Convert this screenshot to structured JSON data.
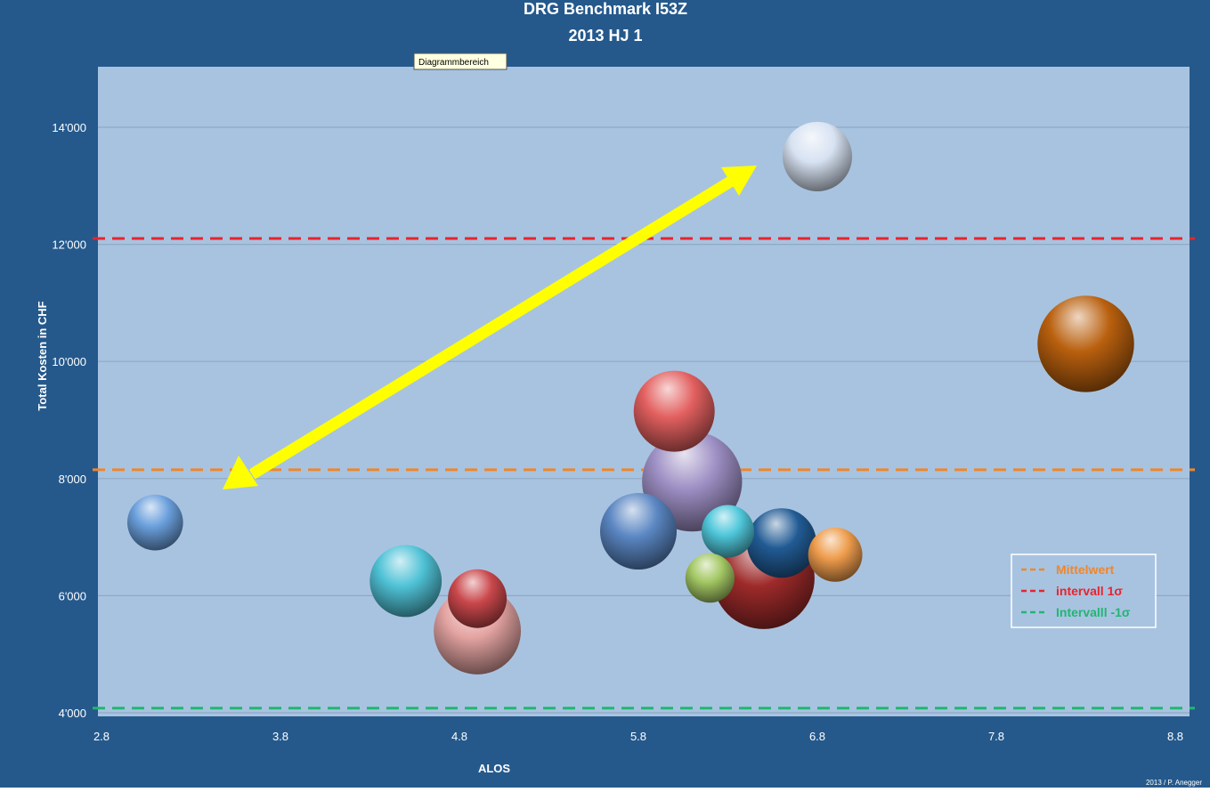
{
  "chart_data": {
    "type": "bubble",
    "title": "DRG Benchmark I53Z",
    "subtitle": "2013 HJ 1",
    "xlabel": "ALOS",
    "ylabel": "Total Kosten in CHF",
    "xlim": [
      2.8,
      8.9
    ],
    "ylim": [
      4000,
      15000
    ],
    "x_ticks": [
      "2.8",
      "3.8",
      "4.8",
      "5.8",
      "6.8",
      "7.8",
      "8.8"
    ],
    "x_tick_values": [
      2.8,
      3.8,
      4.8,
      5.8,
      6.8,
      7.8,
      8.8
    ],
    "y_ticks": [
      "4'000",
      "6'000",
      "8'000",
      "10'000",
      "12'000",
      "14'000"
    ],
    "y_tick_values": [
      4000,
      6000,
      8000,
      10000,
      12000,
      14000
    ],
    "grid": "horizontal",
    "tooltip": "Diagrammbereich",
    "credit": "2013 / P. Anegger",
    "reference_lines": [
      {
        "name": "Mittelwert",
        "y": 8150,
        "color": "#f0862a"
      },
      {
        "name": "intervall 1σ",
        "y": 12100,
        "color": "#e8242d"
      },
      {
        "name": "Intervalll -1σ",
        "y": 4080,
        "color": "#22b573"
      }
    ],
    "legend": {
      "position": "lower-right",
      "entries": [
        {
          "label": "Mittelwert",
          "color": "#f0862a"
        },
        {
          "label": "intervall 1σ",
          "color": "#e8242d"
        },
        {
          "label": "Intervalll -1σ",
          "color": "#22b573"
        }
      ]
    },
    "series": [
      {
        "x": 3.1,
        "y": 7250,
        "size": 0.9,
        "color": "#6a9fdc"
      },
      {
        "x": 4.9,
        "y": 5400,
        "size": 2.2,
        "color": "#e3a3a1"
      },
      {
        "x": 4.5,
        "y": 6250,
        "size": 1.5,
        "color": "#4fc2d6"
      },
      {
        "x": 4.9,
        "y": 5950,
        "size": 1.0,
        "color": "#c9474b"
      },
      {
        "x": 5.8,
        "y": 7100,
        "size": 1.7,
        "color": "#5a86c2"
      },
      {
        "x": 6.1,
        "y": 7950,
        "size": 2.9,
        "color": "#9d8fc4"
      },
      {
        "x": 6.0,
        "y": 9150,
        "size": 1.9,
        "color": "#e2605f"
      },
      {
        "x": 6.5,
        "y": 6300,
        "size": 3.0,
        "color": "#9e2a2a"
      },
      {
        "x": 6.2,
        "y": 6300,
        "size": 0.7,
        "color": "#a4c864"
      },
      {
        "x": 6.3,
        "y": 7100,
        "size": 0.8,
        "color": "#4fc7da"
      },
      {
        "x": 6.6,
        "y": 6900,
        "size": 1.4,
        "color": "#215b94"
      },
      {
        "x": 6.9,
        "y": 6700,
        "size": 0.85,
        "color": "#ee9c4c"
      },
      {
        "x": 6.8,
        "y": 13500,
        "size": 1.4,
        "color": "#d7e2f2"
      },
      {
        "x": 8.3,
        "y": 10300,
        "size": 2.7,
        "color": "#b9600e"
      }
    ]
  }
}
